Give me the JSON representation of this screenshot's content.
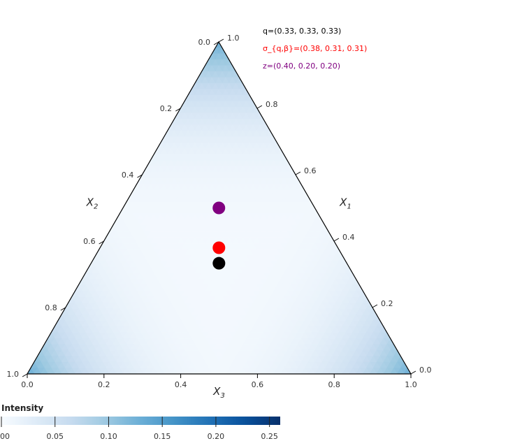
{
  "chart_data": {
    "type": "heatmap",
    "subtype": "ternary-density",
    "axes": {
      "x1": {
        "label": "X",
        "sub": "1",
        "ticks": [
          "0.0",
          "0.2",
          "0.4",
          "0.6",
          "0.8",
          "1.0"
        ]
      },
      "x2": {
        "label": "X",
        "sub": "2",
        "ticks": [
          "0.0",
          "0.2",
          "0.4",
          "0.6",
          "0.8",
          "1.0"
        ]
      },
      "x3": {
        "label": "X",
        "sub": "3",
        "ticks": [
          "0.0",
          "0.2",
          "0.4",
          "0.6",
          "0.8",
          "1.0"
        ]
      }
    },
    "points": [
      {
        "name": "q",
        "coords": [
          0.33,
          0.33,
          0.33
        ],
        "color": "#000000",
        "label": "q=(0.33, 0.33, 0.33)"
      },
      {
        "name": "σ_{q,β}",
        "coords": [
          0.38,
          0.31,
          0.31
        ],
        "color": "#ff0000",
        "label": "σ_{q,β}=(0.38, 0.31, 0.31)"
      },
      {
        "name": "z",
        "coords": [
          0.4,
          0.2,
          0.2
        ],
        "color": "#800080",
        "label": "z=(0.40, 0.20, 0.20)"
      }
    ],
    "heatmap": {
      "description": "density highest at the three corners, lowest in the interior",
      "corner_value": 0.13,
      "center_value": 0.005
    },
    "colorbar": {
      "title": "Intensity",
      "min": 0.0,
      "max": 0.26,
      "ticks": [
        "00",
        "0.05",
        "0.10",
        "0.15",
        "0.20",
        "0.25"
      ],
      "tick_values": [
        0.0,
        0.05,
        0.1,
        0.15,
        0.2,
        0.25
      ],
      "colormap": "Blues"
    }
  }
}
